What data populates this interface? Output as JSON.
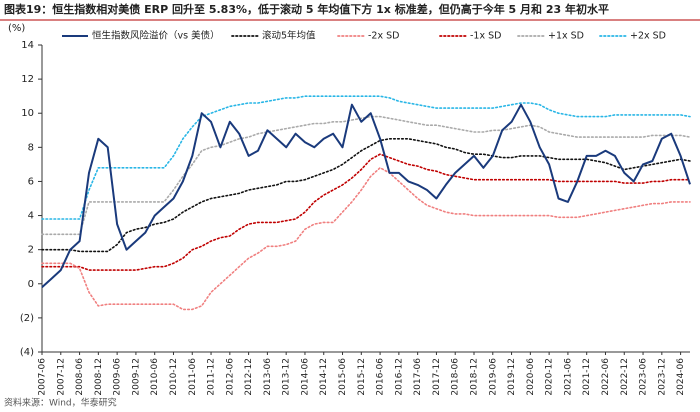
{
  "chart_data": {
    "type": "line",
    "title": "图表19：恒生指数相对美债 ERP 回升至 5.83%，低于滚动 5 年均值下方 1x 标准差，但仍高于今年 5 月和 23 年初水平",
    "source": "资料来源：Wind，华泰研究",
    "y_unit": "(%)",
    "categories": [
      "2007-06",
      null,
      "2007-12",
      null,
      "2008-06",
      null,
      "2008-12",
      null,
      "2009-06",
      null,
      "2009-12",
      null,
      "2010-06",
      null,
      "2010-12",
      null,
      "2011-06",
      null,
      "2011-12",
      null,
      "2012-06",
      null,
      "2012-12",
      null,
      "2013-06",
      null,
      "2013-12",
      null,
      "2014-06",
      null,
      "2014-12",
      null,
      "2015-06",
      null,
      "2015-12",
      null,
      "2016-06",
      null,
      "2016-12",
      null,
      "2017-06",
      null,
      "2017-12",
      null,
      "2018-06",
      null,
      "2018-12",
      null,
      "2019-06",
      null,
      "2019-12",
      null,
      "2020-06",
      null,
      "2020-12",
      null,
      "2021-06",
      null,
      "2021-12",
      null,
      "2022-06",
      null,
      "2022-12",
      null,
      "2023-06",
      null,
      "2023-12",
      null,
      "2024-06",
      null
    ],
    "ylim": [
      -4,
      14
    ],
    "yticks": [
      {
        "value": -4,
        "label": "(4)"
      },
      {
        "value": -2,
        "label": "(2)"
      },
      0,
      2,
      4,
      6,
      8,
      10,
      12,
      14
    ],
    "grid": false,
    "series": [
      {
        "name": "恒生指数风险溢价（vs 美债）",
        "color": "#1a3a7c",
        "dash": "solid",
        "values": [
          -0.2,
          0.3,
          0.8,
          2.0,
          2.5,
          6.5,
          8.5,
          8.0,
          3.5,
          2.0,
          2.5,
          3.0,
          4.0,
          4.5,
          5.0,
          6.0,
          7.5,
          10.0,
          9.5,
          8.0,
          9.5,
          8.8,
          7.5,
          7.8,
          9.0,
          8.5,
          8.0,
          8.8,
          8.3,
          8.0,
          8.5,
          8.8,
          8.0,
          10.5,
          9.5,
          10.0,
          8.5,
          6.5,
          6.5,
          6.0,
          5.8,
          5.5,
          5.0,
          5.8,
          6.5,
          7.0,
          7.5,
          6.8,
          7.5,
          9.0,
          9.5,
          10.5,
          9.5,
          8.0,
          7.0,
          5.0,
          4.8,
          6.0,
          7.5,
          7.5,
          7.8,
          7.5,
          6.5,
          6.0,
          7.0,
          7.2,
          8.5,
          8.8,
          7.5,
          5.83
        ]
      },
      {
        "name": "滚动5年均值",
        "color": "#111111",
        "dash": "dotted",
        "values": [
          2.0,
          2.0,
          2.0,
          2.0,
          1.9,
          1.9,
          1.9,
          1.9,
          2.3,
          3.0,
          3.2,
          3.3,
          3.5,
          3.6,
          3.8,
          4.2,
          4.5,
          4.8,
          5.0,
          5.1,
          5.2,
          5.3,
          5.5,
          5.6,
          5.7,
          5.8,
          6.0,
          6.0,
          6.1,
          6.3,
          6.5,
          6.7,
          7.0,
          7.4,
          7.8,
          8.1,
          8.4,
          8.5,
          8.5,
          8.5,
          8.4,
          8.3,
          8.2,
          8.0,
          7.9,
          7.7,
          7.6,
          7.6,
          7.5,
          7.4,
          7.4,
          7.5,
          7.5,
          7.5,
          7.4,
          7.3,
          7.3,
          7.3,
          7.3,
          7.2,
          7.1,
          6.9,
          6.7,
          6.8,
          6.9,
          7.0,
          7.1,
          7.2,
          7.3,
          7.2
        ]
      },
      {
        "name": "-2x SD",
        "color": "#f08080",
        "dash": "dotted",
        "values": [
          1.2,
          1.2,
          1.2,
          1.2,
          0.9,
          -0.5,
          -1.3,
          -1.2,
          -1.2,
          -1.2,
          -1.2,
          -1.2,
          -1.2,
          -1.2,
          -1.2,
          -1.5,
          -1.5,
          -1.3,
          -0.5,
          0.0,
          0.5,
          1.0,
          1.5,
          1.8,
          2.2,
          2.2,
          2.3,
          2.5,
          3.2,
          3.5,
          3.6,
          3.6,
          4.2,
          4.8,
          5.5,
          6.3,
          6.8,
          6.5,
          6.0,
          5.5,
          5.0,
          4.6,
          4.4,
          4.2,
          4.1,
          4.1,
          4.0,
          4.0,
          4.0,
          4.0,
          4.0,
          4.0,
          4.0,
          4.0,
          4.0,
          3.9,
          3.9,
          3.9,
          4.0,
          4.1,
          4.2,
          4.3,
          4.4,
          4.5,
          4.6,
          4.7,
          4.7,
          4.8,
          4.8,
          4.8
        ]
      },
      {
        "name": "-1x SD",
        "color": "#c00000",
        "dash": "dotted",
        "values": [
          1.0,
          1.0,
          1.0,
          1.0,
          1.0,
          0.8,
          0.8,
          0.8,
          0.8,
          0.8,
          0.8,
          0.9,
          1.0,
          1.0,
          1.2,
          1.5,
          2.0,
          2.2,
          2.5,
          2.7,
          2.8,
          3.2,
          3.5,
          3.6,
          3.6,
          3.6,
          3.7,
          3.8,
          4.2,
          4.8,
          5.2,
          5.5,
          5.8,
          6.2,
          6.7,
          7.3,
          7.6,
          7.4,
          7.2,
          7.0,
          6.9,
          6.7,
          6.6,
          6.4,
          6.3,
          6.2,
          6.1,
          6.1,
          6.1,
          6.1,
          6.1,
          6.1,
          6.1,
          6.1,
          6.1,
          6.0,
          6.0,
          6.0,
          6.0,
          6.0,
          6.0,
          6.0,
          5.9,
          5.9,
          5.9,
          6.0,
          6.0,
          6.1,
          6.1,
          6.1
        ]
      },
      {
        "name": "+1x SD",
        "color": "#aaaaaa",
        "dash": "dotted",
        "values": [
          2.9,
          2.9,
          2.9,
          2.9,
          2.9,
          4.8,
          4.8,
          4.8,
          4.8,
          4.8,
          4.8,
          4.8,
          4.8,
          4.8,
          5.5,
          6.3,
          7.0,
          7.8,
          8.0,
          8.1,
          8.3,
          8.5,
          8.6,
          8.8,
          8.9,
          9.0,
          9.1,
          9.2,
          9.3,
          9.4,
          9.4,
          9.5,
          9.5,
          9.6,
          9.7,
          9.8,
          9.8,
          9.7,
          9.6,
          9.5,
          9.4,
          9.3,
          9.3,
          9.2,
          9.1,
          9.0,
          8.9,
          8.9,
          9.0,
          9.0,
          9.1,
          9.2,
          9.3,
          9.2,
          8.9,
          8.8,
          8.7,
          8.6,
          8.6,
          8.6,
          8.6,
          8.6,
          8.6,
          8.6,
          8.6,
          8.7,
          8.7,
          8.7,
          8.7,
          8.6
        ]
      },
      {
        "name": "+2x SD",
        "color": "#29b6e6",
        "dash": "dotted",
        "values": [
          3.8,
          3.8,
          3.8,
          3.8,
          3.8,
          5.5,
          6.8,
          6.8,
          6.8,
          6.8,
          6.8,
          6.8,
          6.8,
          6.8,
          7.5,
          8.5,
          9.2,
          9.8,
          10.0,
          10.2,
          10.4,
          10.5,
          10.6,
          10.6,
          10.7,
          10.8,
          10.9,
          10.9,
          11.0,
          11.0,
          11.0,
          11.0,
          11.0,
          11.0,
          11.0,
          11.0,
          11.0,
          10.9,
          10.7,
          10.6,
          10.5,
          10.4,
          10.3,
          10.3,
          10.3,
          10.3,
          10.3,
          10.3,
          10.3,
          10.4,
          10.5,
          10.6,
          10.6,
          10.5,
          10.2,
          10.0,
          9.9,
          9.8,
          9.8,
          9.8,
          9.8,
          9.9,
          9.9,
          9.9,
          9.9,
          9.9,
          9.9,
          9.9,
          9.9,
          9.8
        ]
      }
    ]
  }
}
